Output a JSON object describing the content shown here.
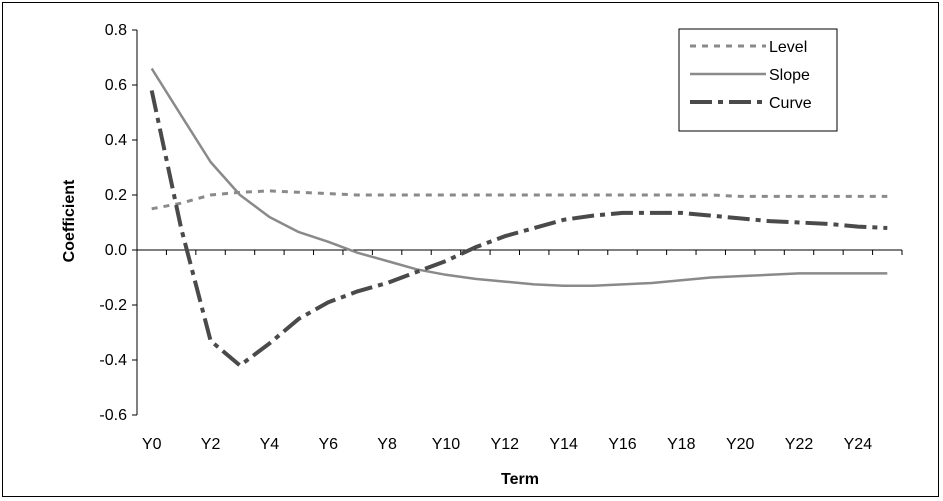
{
  "chart_data": {
    "type": "line",
    "title": "",
    "xlabel": "Term",
    "ylabel": "Coefficient",
    "ylim": [
      -0.6,
      0.8
    ],
    "yticks": [
      "0.8",
      "0.6",
      "0.4",
      "0.2",
      "0.0",
      "-0.2",
      "-0.4",
      "-0.6"
    ],
    "ytick_values": [
      0.8,
      0.6,
      0.4,
      0.2,
      0.0,
      -0.2,
      -0.4,
      -0.6
    ],
    "xticks": [
      "Y0",
      "Y2",
      "Y4",
      "Y6",
      "Y8",
      "Y10",
      "Y12",
      "Y14",
      "Y16",
      "Y18",
      "Y20",
      "Y22",
      "Y24"
    ],
    "xtick_values": [
      0,
      2,
      4,
      6,
      8,
      10,
      12,
      14,
      16,
      18,
      20,
      22,
      24
    ],
    "x": [
      0,
      1,
      2,
      3,
      4,
      5,
      6,
      7,
      8,
      9,
      10,
      11,
      12,
      13,
      14,
      15,
      16,
      17,
      18,
      19,
      20,
      21,
      22,
      23,
      24,
      25
    ],
    "xlim": [
      -0.5,
      25.5
    ],
    "grid": false,
    "legend_position": "top-right",
    "series": [
      {
        "name": "Level",
        "color": "#8a8a8a",
        "dash": "dotted",
        "values": [
          0.15,
          0.17,
          0.2,
          0.21,
          0.215,
          0.21,
          0.205,
          0.2,
          0.2,
          0.2,
          0.2,
          0.2,
          0.2,
          0.2,
          0.2,
          0.2,
          0.2,
          0.2,
          0.2,
          0.2,
          0.195,
          0.195,
          0.195,
          0.195,
          0.195,
          0.195
        ]
      },
      {
        "name": "Slope",
        "color": "#8a8a8a",
        "dash": "solid",
        "values": [
          0.66,
          0.49,
          0.32,
          0.2,
          0.12,
          0.065,
          0.03,
          -0.01,
          -0.04,
          -0.07,
          -0.09,
          -0.105,
          -0.115,
          -0.125,
          -0.13,
          -0.13,
          -0.125,
          -0.12,
          -0.11,
          -0.1,
          -0.095,
          -0.09,
          -0.085,
          -0.085,
          -0.085,
          -0.085
        ]
      },
      {
        "name": "Curve",
        "color": "#4a4a4a",
        "dash": "dash-dot",
        "values": [
          0.58,
          0.08,
          -0.33,
          -0.42,
          -0.34,
          -0.25,
          -0.19,
          -0.15,
          -0.12,
          -0.08,
          -0.04,
          0.01,
          0.05,
          0.08,
          0.11,
          0.125,
          0.135,
          0.135,
          0.135,
          0.125,
          0.115,
          0.105,
          0.1,
          0.095,
          0.085,
          0.08
        ]
      }
    ]
  }
}
